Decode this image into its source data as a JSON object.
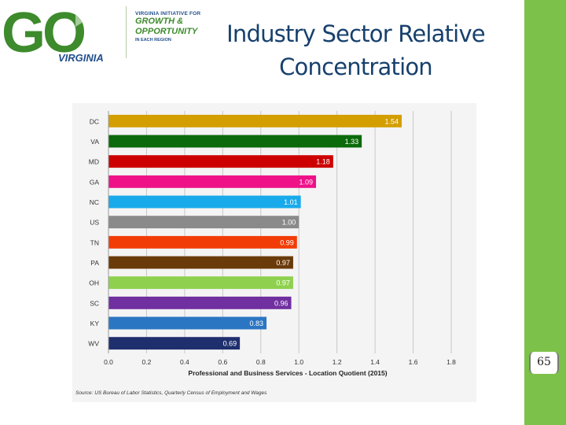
{
  "logo": {
    "letters": "GO",
    "state": "VIRGINIA",
    "line1": "VIRGINIA INITIATIVE FOR",
    "line2": "GROWTH &",
    "line3": "OPPORTUNITY",
    "line4": "IN EACH REGION"
  },
  "slide": {
    "title_line1": "Industry Sector Relative",
    "title_line2": "Concentration",
    "page_number": "65"
  },
  "colors": {
    "title": "#17406d",
    "logo_green": "#3d8b2c",
    "logo_blue": "#1f4e8c",
    "sidebar": "#7cc24a"
  },
  "chart_data": {
    "type": "bar",
    "orientation": "horizontal",
    "categories": [
      "DC",
      "VA",
      "MD",
      "GA",
      "NC",
      "US",
      "TN",
      "PA",
      "OH",
      "SC",
      "KY",
      "WV"
    ],
    "values": [
      1.54,
      1.33,
      1.18,
      1.09,
      1.01,
      1.0,
      0.99,
      0.97,
      0.97,
      0.96,
      0.83,
      0.69
    ],
    "value_labels": [
      "1.54",
      "1.33",
      "1.18",
      "1.09",
      "1.01",
      "1.00",
      "0.99",
      "0.97",
      "0.97",
      "0.96",
      "0.83",
      "0.69"
    ],
    "colors": [
      "#d39e00",
      "#0b6a0b",
      "#cc0000",
      "#ee1188",
      "#19aaeb",
      "#8a8a8a",
      "#f23c08",
      "#6b3a0a",
      "#8fd14f",
      "#7030a0",
      "#2b76c3",
      "#1f2f6e"
    ],
    "xlabel": "Professional and Business Services - Location Quotient (2015)",
    "xlim": [
      0,
      1.8
    ],
    "xticks": [
      0.0,
      0.2,
      0.4,
      0.6,
      0.8,
      1.0,
      1.2,
      1.4,
      1.6,
      1.8
    ],
    "xtick_labels": [
      "0.0",
      "0.2",
      "0.4",
      "0.6",
      "0.8",
      "1.0",
      "1.2",
      "1.4",
      "1.6",
      "1.8"
    ],
    "grid": true,
    "source": "Source: US Bureau of Labor Statistics, Quarterly Census of Employment and Wages"
  }
}
